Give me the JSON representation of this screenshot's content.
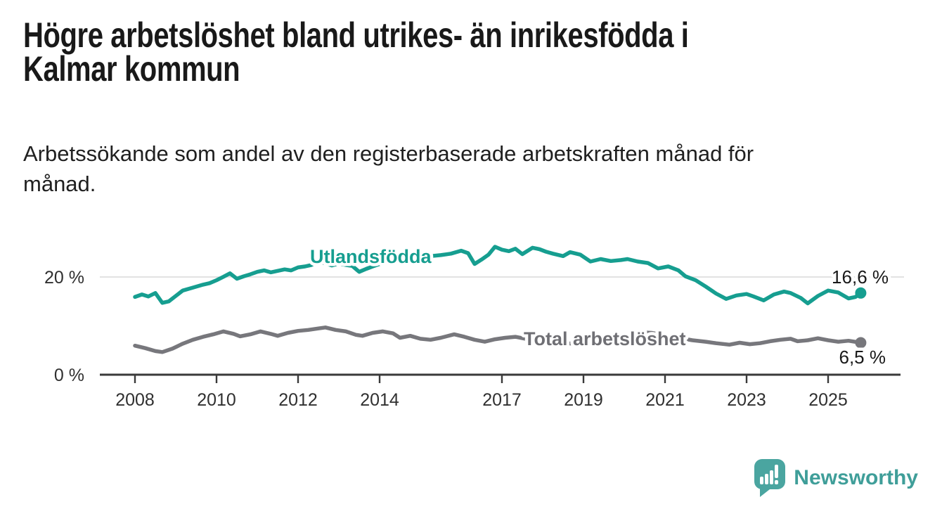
{
  "header": {
    "title_lines": [
      "Högre arbetslöshet bland utrikes- än inrikesfödda i",
      "Kalmar kommun"
    ],
    "subtitle_lines": [
      "Arbetssökande som andel av den registerbaserade arbetskraften månad för",
      "månad."
    ]
  },
  "chart_data": {
    "type": "line",
    "title": "Högre arbetslöshet bland utrikes- än inrikesfödda i Kalmar kommun",
    "subtitle": "Arbetssökande som andel av den registerbaserade arbetskraften månad för månad.",
    "unit": "%",
    "xlim": [
      2008,
      2025.9
    ],
    "ylim": [
      0,
      28
    ],
    "grid": "horizontal gridline at 20% only",
    "legend_position": "inline labels on lines, value labels at line ends",
    "x_ticks": [
      2008,
      2010,
      2012,
      2014,
      2017,
      2019,
      2021,
      2023,
      2025
    ],
    "x_tick_labels": [
      "2008",
      "2010",
      "2012",
      "2014",
      "2017",
      "2019",
      "2021",
      "2023",
      "2025"
    ],
    "y_ticks": [
      {
        "value": 0,
        "label": "0 %"
      },
      {
        "value": 20,
        "label": "20 %"
      }
    ],
    "series": [
      {
        "name": "Utlandsfödda",
        "color": "#169e90",
        "end_label": "16,6 %",
        "end_value": 16.6,
        "points": [
          [
            2008.0,
            15.8
          ],
          [
            2008.17,
            16.3
          ],
          [
            2008.33,
            15.9
          ],
          [
            2008.5,
            16.6
          ],
          [
            2008.67,
            14.6
          ],
          [
            2008.83,
            14.9
          ],
          [
            2009.0,
            16.0
          ],
          [
            2009.17,
            17.1
          ],
          [
            2009.42,
            17.7
          ],
          [
            2009.67,
            18.3
          ],
          [
            2009.83,
            18.6
          ],
          [
            2010.0,
            19.2
          ],
          [
            2010.17,
            19.9
          ],
          [
            2010.33,
            20.6
          ],
          [
            2010.5,
            19.5
          ],
          [
            2010.67,
            20.0
          ],
          [
            2010.83,
            20.4
          ],
          [
            2011.0,
            20.9
          ],
          [
            2011.17,
            21.2
          ],
          [
            2011.33,
            20.8
          ],
          [
            2011.5,
            21.1
          ],
          [
            2011.67,
            21.4
          ],
          [
            2011.83,
            21.2
          ],
          [
            2012.0,
            21.8
          ],
          [
            2012.17,
            22.0
          ],
          [
            2012.33,
            22.3
          ],
          [
            2012.5,
            23.1
          ],
          [
            2012.67,
            22.6
          ],
          [
            2012.83,
            22.2
          ],
          [
            2013.0,
            22.6
          ],
          [
            2013.17,
            22.3
          ],
          [
            2013.33,
            22.1
          ],
          [
            2013.5,
            20.9
          ],
          [
            2013.67,
            21.5
          ],
          [
            2013.83,
            22.0
          ],
          [
            2014.0,
            22.5
          ],
          [
            2014.25,
            22.9
          ],
          [
            2014.5,
            23.2
          ],
          [
            2014.75,
            23.5
          ],
          [
            2015.0,
            23.9
          ],
          [
            2015.25,
            24.1
          ],
          [
            2015.5,
            24.3
          ],
          [
            2015.75,
            24.6
          ],
          [
            2016.0,
            25.2
          ],
          [
            2016.17,
            24.7
          ],
          [
            2016.33,
            22.5
          ],
          [
            2016.5,
            23.4
          ],
          [
            2016.67,
            24.4
          ],
          [
            2016.83,
            26.0
          ],
          [
            2017.0,
            25.4
          ],
          [
            2017.17,
            25.1
          ],
          [
            2017.33,
            25.6
          ],
          [
            2017.5,
            24.5
          ],
          [
            2017.75,
            25.8
          ],
          [
            2017.92,
            25.5
          ],
          [
            2018.08,
            25.0
          ],
          [
            2018.25,
            24.6
          ],
          [
            2018.5,
            24.1
          ],
          [
            2018.67,
            24.9
          ],
          [
            2018.92,
            24.4
          ],
          [
            2019.17,
            23.0
          ],
          [
            2019.42,
            23.5
          ],
          [
            2019.67,
            23.1
          ],
          [
            2019.92,
            23.3
          ],
          [
            2020.08,
            23.5
          ],
          [
            2020.33,
            23.0
          ],
          [
            2020.58,
            22.7
          ],
          [
            2020.83,
            21.6
          ],
          [
            2021.08,
            22.0
          ],
          [
            2021.33,
            21.2
          ],
          [
            2021.5,
            20.0
          ],
          [
            2021.75,
            19.2
          ],
          [
            2022.0,
            17.9
          ],
          [
            2022.25,
            16.5
          ],
          [
            2022.5,
            15.4
          ],
          [
            2022.75,
            16.1
          ],
          [
            2023.0,
            16.4
          ],
          [
            2023.17,
            15.9
          ],
          [
            2023.42,
            15.1
          ],
          [
            2023.67,
            16.3
          ],
          [
            2023.92,
            16.9
          ],
          [
            2024.08,
            16.6
          ],
          [
            2024.33,
            15.6
          ],
          [
            2024.5,
            14.5
          ],
          [
            2024.75,
            16.0
          ],
          [
            2025.0,
            17.1
          ],
          [
            2025.25,
            16.7
          ],
          [
            2025.5,
            15.5
          ],
          [
            2025.67,
            15.8
          ],
          [
            2025.8,
            16.6
          ]
        ]
      },
      {
        "name": "Total arbetslöshet",
        "color": "#77777c",
        "end_label": "6,5 %",
        "end_value": 6.5,
        "points": [
          [
            2008.0,
            5.9
          ],
          [
            2008.25,
            5.4
          ],
          [
            2008.5,
            4.8
          ],
          [
            2008.67,
            4.6
          ],
          [
            2008.92,
            5.3
          ],
          [
            2009.17,
            6.3
          ],
          [
            2009.42,
            7.1
          ],
          [
            2009.67,
            7.7
          ],
          [
            2009.92,
            8.2
          ],
          [
            2010.17,
            8.8
          ],
          [
            2010.42,
            8.3
          ],
          [
            2010.58,
            7.8
          ],
          [
            2010.83,
            8.2
          ],
          [
            2011.08,
            8.8
          ],
          [
            2011.33,
            8.3
          ],
          [
            2011.5,
            7.9
          ],
          [
            2011.75,
            8.5
          ],
          [
            2012.0,
            8.9
          ],
          [
            2012.25,
            9.1
          ],
          [
            2012.5,
            9.4
          ],
          [
            2012.67,
            9.6
          ],
          [
            2012.92,
            9.1
          ],
          [
            2013.17,
            8.8
          ],
          [
            2013.42,
            8.1
          ],
          [
            2013.58,
            7.9
          ],
          [
            2013.83,
            8.5
          ],
          [
            2014.08,
            8.8
          ],
          [
            2014.33,
            8.4
          ],
          [
            2014.5,
            7.5
          ],
          [
            2014.75,
            7.9
          ],
          [
            2015.0,
            7.3
          ],
          [
            2015.25,
            7.1
          ],
          [
            2015.5,
            7.5
          ],
          [
            2015.83,
            8.2
          ],
          [
            2016.08,
            7.7
          ],
          [
            2016.33,
            7.1
          ],
          [
            2016.58,
            6.7
          ],
          [
            2016.83,
            7.2
          ],
          [
            2017.08,
            7.5
          ],
          [
            2017.33,
            7.7
          ],
          [
            2017.58,
            7.3
          ],
          [
            2017.83,
            7.0
          ],
          [
            2018.17,
            6.7
          ],
          [
            2018.5,
            6.4
          ],
          [
            2018.83,
            6.3
          ],
          [
            2019.17,
            6.4
          ],
          [
            2019.5,
            6.6
          ],
          [
            2019.83,
            7.0
          ],
          [
            2020.17,
            8.1
          ],
          [
            2020.42,
            8.6
          ],
          [
            2020.67,
            8.5
          ],
          [
            2021.0,
            8.0
          ],
          [
            2021.33,
            7.5
          ],
          [
            2021.67,
            7.0
          ],
          [
            2022.0,
            6.7
          ],
          [
            2022.25,
            6.4
          ],
          [
            2022.58,
            6.1
          ],
          [
            2022.83,
            6.5
          ],
          [
            2023.08,
            6.2
          ],
          [
            2023.33,
            6.4
          ],
          [
            2023.58,
            6.8
          ],
          [
            2023.83,
            7.1
          ],
          [
            2024.08,
            7.3
          ],
          [
            2024.25,
            6.8
          ],
          [
            2024.5,
            7.0
          ],
          [
            2024.75,
            7.4
          ],
          [
            2025.0,
            7.0
          ],
          [
            2025.25,
            6.7
          ],
          [
            2025.5,
            6.9
          ],
          [
            2025.8,
            6.5
          ]
        ]
      }
    ]
  },
  "colors": {
    "accent_teal": "#169e90",
    "line_gray": "#77777c",
    "gridline": "#d9d9d9",
    "axis": "#3a3a3a",
    "text_dark": "#191919"
  },
  "logo": {
    "text": "Newsworthy",
    "bubble_color": "#4aa5a0",
    "text_color": "#3f9e99"
  }
}
